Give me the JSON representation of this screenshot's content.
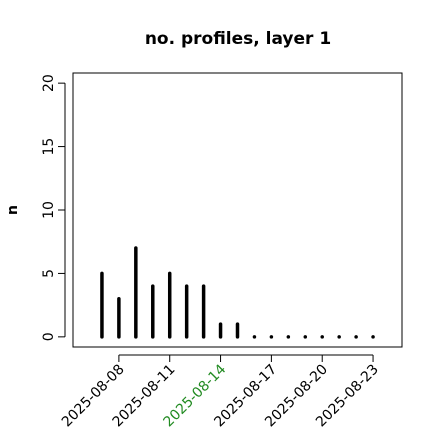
{
  "chart_data": {
    "type": "histogram-lines",
    "title": "no. profiles, layer 1",
    "y_label": "n",
    "x": [
      "2025-08-07",
      "2025-08-08",
      "2025-08-09",
      "2025-08-10",
      "2025-08-11",
      "2025-08-12",
      "2025-08-13",
      "2025-08-14",
      "2025-08-15",
      "2025-08-16",
      "2025-08-17",
      "2025-08-18",
      "2025-08-19",
      "2025-08-20",
      "2025-08-21",
      "2025-08-22",
      "2025-08-23"
    ],
    "values": [
      5,
      3,
      7,
      4,
      5,
      4,
      4,
      1,
      1,
      0,
      0,
      0,
      0,
      0,
      0,
      0,
      0
    ],
    "color": "#000000",
    "xlim": [
      "2025-08-05T07:00",
      "2025-08-24T17:00"
    ],
    "xticks": [
      "2025-08-08",
      "2025-08-11",
      "2025-08-14",
      "2025-08-17",
      "2025-08-20",
      "2025-08-23"
    ],
    "xtick_colors": [
      "#000000",
      "#000000",
      "#228b22",
      "#000000",
      "#000000",
      "#000000"
    ],
    "ylim": [
      -0.8,
      20.8
    ],
    "yticks": [
      0,
      5,
      10,
      15,
      20
    ]
  }
}
